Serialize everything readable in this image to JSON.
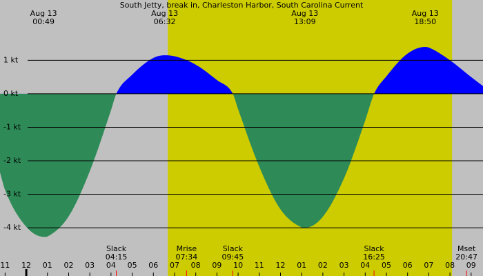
{
  "chart_data": {
    "type": "area",
    "title": "South Jetty, break in, Charleston Harbor, South Carolina Current",
    "x": [
      -1.24,
      -1,
      0,
      0.82,
      1,
      2,
      3,
      4,
      4.25,
      5,
      6,
      6.53,
      7,
      8,
      9,
      9.75,
      10,
      11,
      12,
      13,
      13.15,
      14,
      15,
      16,
      16.42,
      17,
      18,
      18.83,
      19,
      20,
      21,
      21.56
    ],
    "values": [
      -2.35,
      -2.87,
      -3.97,
      -4.27,
      -4.26,
      -3.66,
      -2.31,
      -0.49,
      0,
      0.57,
      1.07,
      1.15,
      1.12,
      0.87,
      0.41,
      0,
      -0.46,
      -2.18,
      -3.45,
      -3.99,
      -4.0,
      -3.67,
      -2.52,
      -0.8,
      0,
      0.52,
      1.2,
      1.4,
      1.38,
      1.0,
      0.5,
      0.23
    ],
    "flood_color": "#0000ff",
    "ebb_color": "#2e8b57",
    "background_color": "#c0c0c0",
    "shaded_band": {
      "x": [
        6.68,
        20.1
      ],
      "color": "#cccc00"
    },
    "xlim": [
      -1.24,
      21.56
    ],
    "ylim": [
      -5.44,
      2.8
    ],
    "grid": true,
    "yticks": [
      {
        "value": 1,
        "label": "1 kt"
      },
      {
        "value": 0,
        "label": "0 kt"
      },
      {
        "value": -1,
        "label": "-1 kt"
      },
      {
        "value": -2,
        "label": "-2 kt"
      },
      {
        "value": -3,
        "label": "-3 kt"
      },
      {
        "value": -4,
        "label": "-4 kt"
      }
    ],
    "xticks": [
      {
        "value": -1,
        "label": "11"
      },
      {
        "value": 0,
        "label": "12"
      },
      {
        "value": 1,
        "label": "01"
      },
      {
        "value": 2,
        "label": "02"
      },
      {
        "value": 3,
        "label": "03"
      },
      {
        "value": 4,
        "label": "04"
      },
      {
        "value": 5,
        "label": "05"
      },
      {
        "value": 6,
        "label": "06"
      },
      {
        "value": 7,
        "label": "07"
      },
      {
        "value": 8,
        "label": "08"
      },
      {
        "value": 9,
        "label": "09"
      },
      {
        "value": 10,
        "label": "10"
      },
      {
        "value": 11,
        "label": "11"
      },
      {
        "value": 12,
        "label": "12"
      },
      {
        "value": 13,
        "label": "01"
      },
      {
        "value": 14,
        "label": "02"
      },
      {
        "value": 15,
        "label": "03"
      },
      {
        "value": 16,
        "label": "04"
      },
      {
        "value": 17,
        "label": "05"
      },
      {
        "value": 18,
        "label": "06"
      },
      {
        "value": 19,
        "label": "07"
      },
      {
        "value": 20,
        "label": "08"
      },
      {
        "value": 21,
        "label": "09"
      }
    ],
    "extremes": [
      {
        "date": "Aug 13",
        "time": "00:49"
      },
      {
        "date": "Aug 13",
        "time": "06:32"
      },
      {
        "date": "Aug 13",
        "time": "13:09"
      },
      {
        "date": "Aug 13",
        "time": "18:50"
      }
    ],
    "events": [
      {
        "label": "Slack",
        "time": "04:15"
      },
      {
        "label": "Mrise",
        "time": "07:34"
      },
      {
        "label": "Slack",
        "time": "09:45"
      },
      {
        "label": "Slack",
        "time": "16:25"
      },
      {
        "label": "Mset",
        "time": "20:47"
      }
    ]
  }
}
